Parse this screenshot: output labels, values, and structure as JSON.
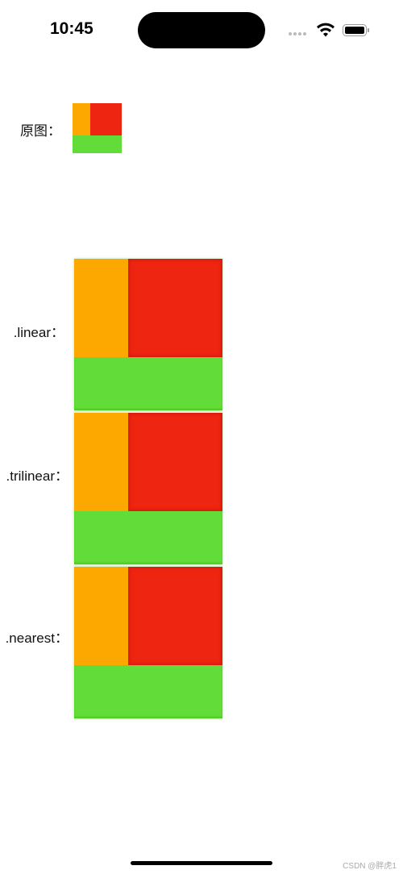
{
  "status_bar": {
    "time": "10:45"
  },
  "rows": [
    {
      "label": "原图："
    },
    {
      "label": ".linear："
    },
    {
      "label": ".trilinear："
    },
    {
      "label": ".nearest："
    }
  ],
  "watermark": "CSDN @胖虎1"
}
